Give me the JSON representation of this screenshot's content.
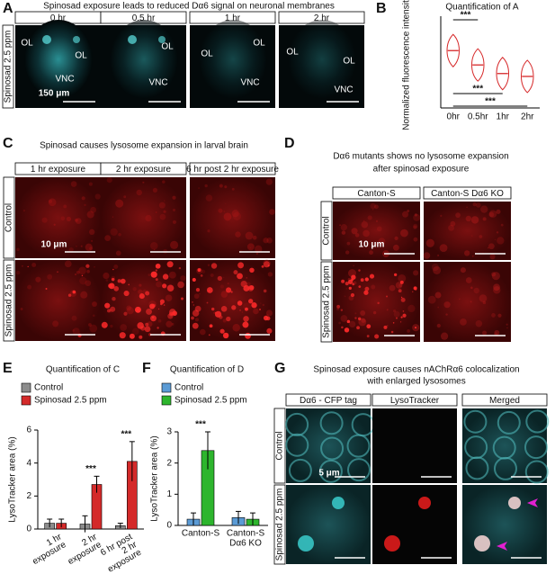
{
  "panels": {
    "A": {
      "label": "A",
      "title": "Spinosad exposure leads to reduced Dα6 signal on neuronal membranes",
      "columns": [
        "0 hr",
        "0.5 hr",
        "1 hr",
        "2 hr"
      ],
      "row": "Spinosad 2.5 ppm",
      "region_labels": [
        [
          "OL",
          "OL",
          "VNC"
        ],
        [
          "OL",
          "VNC"
        ],
        [
          "OL",
          "OL",
          "VNC"
        ],
        [
          "OL",
          "OL",
          "VNC"
        ]
      ],
      "scale": "150 μm"
    },
    "C": {
      "label": "C",
      "title": "Spinosad causes lysosome expansion in larval brain",
      "columns": [
        "1 hr exposure",
        "2 hr exposure",
        "6 hr post 2 hr exposure"
      ],
      "rows": [
        "Control",
        "Spinosad 2.5 ppm"
      ],
      "scale": "10 μm"
    },
    "D": {
      "label": "D",
      "title": [
        "Dα6 mutants shows no lysosome expansion",
        "after spinosad exposure"
      ],
      "columns": [
        "Canton-S",
        "Canton-S Dα6 KO"
      ],
      "rows": [
        "Control",
        "Spinosad 2.5 ppm"
      ],
      "scale": "10 μm"
    },
    "G": {
      "label": "G",
      "title": [
        "Spinosad exposure causes nAChRα6 colocalization",
        "with enlarged lysosomes"
      ],
      "columns": [
        "Dα6 - CFP tag",
        "LysoTracker",
        "Merged"
      ],
      "rows": [
        "Control",
        "Spinosad 2.5 ppm"
      ],
      "scale": "5 μm"
    }
  },
  "chart_data": [
    {
      "type": "violin",
      "panel_label": "B",
      "title": "Quantification of A",
      "y_label": "Normalized fluorescence intensity",
      "categories": [
        "0hr",
        "0.5hr",
        "1hr",
        "2hr"
      ],
      "values": [
        100,
        75,
        60,
        55
      ],
      "color": "#d62728",
      "ylim": [
        0,
        160
      ],
      "annotations": [
        "***",
        "***",
        "***"
      ]
    },
    {
      "type": "bar",
      "panel_label": "E",
      "title": "Quantification of C",
      "y_label": "LysoTracker area (%)",
      "categories": [
        [
          "1 hr",
          "exposure"
        ],
        [
          "2 hr",
          "exposure"
        ],
        [
          "6 hr post",
          "2 hr",
          "exposure"
        ]
      ],
      "series": [
        {
          "name": "Control",
          "color": "#8c8c8c",
          "values": [
            0.35,
            0.3,
            0.2
          ],
          "errors": [
            0.25,
            0.5,
            0.15
          ]
        },
        {
          "name": "Spinosad 2.5 ppm",
          "color": "#d42a2a",
          "values": [
            0.35,
            2.7,
            4.1
          ],
          "errors": [
            0.25,
            0.5,
            1.2
          ]
        }
      ],
      "ylim": [
        0,
        6
      ],
      "yticks": [
        0,
        2,
        4,
        6
      ],
      "annotations": [
        "***",
        "***"
      ]
    },
    {
      "type": "bar",
      "panel_label": "F",
      "title": "Quantification of D",
      "y_label": "LysoTracker area (%)",
      "categories": [
        [
          "Canton-S"
        ],
        [
          "Canton-S",
          "Dα6 KO"
        ]
      ],
      "series": [
        {
          "name": "Control",
          "color": "#5b9bd5",
          "values": [
            0.2,
            0.25
          ],
          "errors": [
            0.2,
            0.2
          ]
        },
        {
          "name": "Spinosad 2.5 ppm",
          "color": "#2db52d",
          "values": [
            2.4,
            0.2
          ],
          "errors": [
            0.6,
            0.2
          ]
        }
      ],
      "ylim": [
        0,
        3
      ],
      "yticks": [
        0,
        1,
        2,
        3
      ],
      "annotations": [
        "***"
      ]
    }
  ]
}
